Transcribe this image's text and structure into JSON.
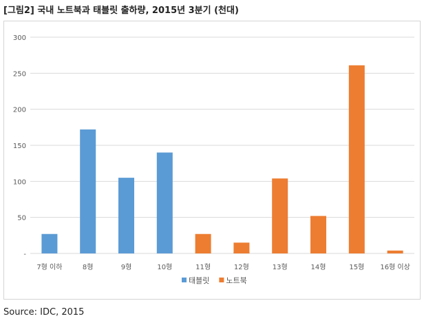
{
  "title": "[그림2] 국내 노트북과 태블릿 출하량, 2015년 3분기 (천대)",
  "source": "Source: IDC, 2015",
  "colors": {
    "tablet": "#5B9BD5",
    "notebook": "#ED7D31",
    "grid": "#d9d9d9",
    "axis_text": "#595959"
  },
  "chart_data": {
    "type": "bar",
    "categories": [
      "7형 이하",
      "8형",
      "9형",
      "10형",
      "11형",
      "12형",
      "13형",
      "14형",
      "15형",
      "16형 이상"
    ],
    "series": [
      {
        "name": "태블릿",
        "values": [
          27,
          172,
          105,
          140,
          1,
          2,
          0,
          0,
          0,
          0
        ]
      },
      {
        "name": "노트북",
        "values": [
          0,
          0,
          0,
          0,
          27,
          15,
          104,
          52,
          261,
          4
        ]
      }
    ],
    "y_ticks": [
      "-",
      "50",
      "100",
      "150",
      "200",
      "250",
      "300"
    ],
    "ylim": [
      0,
      300
    ],
    "grid": true,
    "legend_position": "bottom"
  }
}
